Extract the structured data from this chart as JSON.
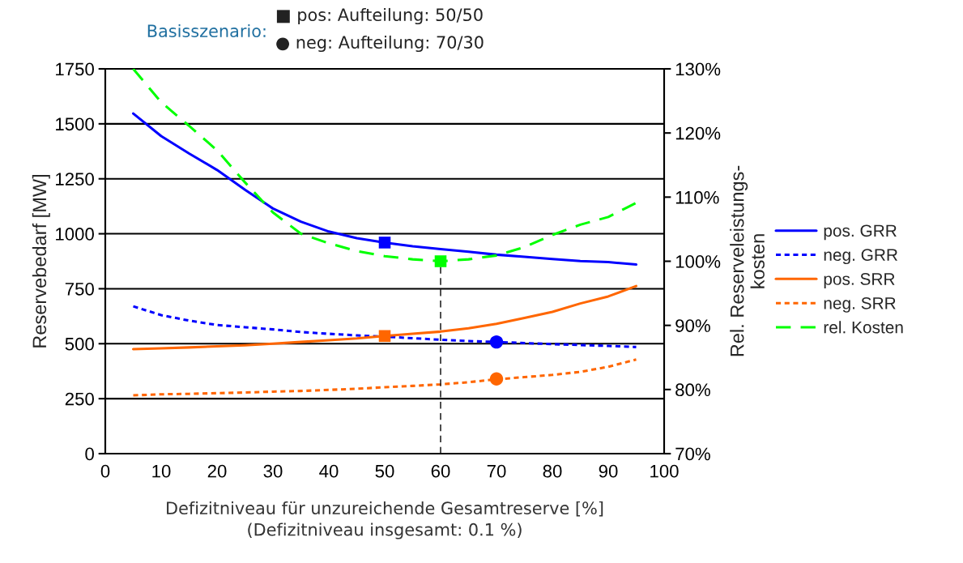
{
  "chart_data": {
    "type": "line",
    "x": [
      5,
      10,
      15,
      20,
      25,
      30,
      35,
      40,
      45,
      50,
      55,
      60,
      65,
      70,
      75,
      80,
      85,
      90,
      95
    ],
    "xlabel": "Defizitniveau für unzureichende Gesamtreserve [%]\n(Defizitniveau insgesamt: 0.1 %)",
    "ylabel": "Reservebedarf [MW]",
    "y2label": "Rel. Reserveleistungs-\nkosten",
    "annotations": [
      "Basisszenario:",
      "■ pos: Aufteilung: 50/50",
      "● neg: Aufteilung: 70/30"
    ],
    "series": [
      {
        "name": "pos. GRR",
        "color": "#0000ff",
        "line_style": "solid",
        "values": [
          1547,
          1444,
          1365,
          1290,
          1200,
          1115,
          1055,
          1010,
          980,
          960,
          943,
          930,
          918,
          905,
          895,
          885,
          876,
          871,
          860
        ]
      },
      {
        "name": "neg. GRR",
        "color": "#0000ff",
        "line_style": "dotted",
        "values": [
          670,
          630,
          605,
          585,
          575,
          565,
          553,
          545,
          538,
          532,
          525,
          518,
          512,
          508,
          503,
          498,
          494,
          490,
          485
        ]
      },
      {
        "name": "pos. SRR",
        "color": "#ff6600",
        "line_style": "solid",
        "values": [
          475,
          479,
          483,
          488,
          493,
          500,
          508,
          516,
          524,
          535,
          545,
          555,
          570,
          590,
          617,
          645,
          683,
          715,
          762
        ]
      },
      {
        "name": "neg. SRR",
        "color": "#ff6600",
        "line_style": "dotted",
        "values": [
          265,
          270,
          272,
          275,
          278,
          282,
          285,
          290,
          295,
          302,
          308,
          315,
          325,
          338,
          348,
          358,
          372,
          395,
          428
        ]
      },
      {
        "name": "rel. Kosten",
        "color": "#00ff00",
        "line_style": "dashed",
        "axis": "y2",
        "values": [
          130,
          124.8,
          121.1,
          117.3,
          112.3,
          107.6,
          104.3,
          102.8,
          101.6,
          100.8,
          100.3,
          100,
          100.3,
          100.9,
          102.2,
          104.1,
          105.7,
          106.9,
          109.1
        ]
      },
      {
        "type": "line",
        "color": "#000000",
        "line_style": "dashed",
        "axis": "y2",
        "x": [
          60,
          60
        ],
        "values": [
          70,
          100
        ]
      },
      {
        "type": "scatter",
        "marker": "square",
        "color": "#0000ff",
        "x": [
          50
        ],
        "values": [
          960
        ]
      },
      {
        "type": "scatter",
        "marker": "square",
        "color": "#ff6600",
        "x": [
          50
        ],
        "values": [
          535
        ]
      },
      {
        "type": "scatter",
        "marker": "square",
        "color": "#00ff00",
        "axis": "y2",
        "x": [
          60
        ],
        "values": [
          100
        ]
      },
      {
        "type": "scatter",
        "marker": "circle",
        "color": "#0000ff",
        "x": [
          70
        ],
        "values": [
          508
        ]
      },
      {
        "type": "scatter",
        "marker": "circle",
        "color": "#ff6600",
        "x": [
          70
        ],
        "values": [
          340
        ]
      }
    ],
    "xlim": [
      0,
      100
    ],
    "xticks": [
      0,
      10,
      20,
      30,
      40,
      50,
      60,
      70,
      80,
      90,
      100
    ],
    "ylim": [
      0,
      1750
    ],
    "yticks": [
      0,
      250,
      500,
      750,
      1000,
      1250,
      1500,
      1750
    ],
    "y2lim": [
      70,
      130
    ],
    "y2ticks": [
      {
        "value": 70,
        "label": "70%"
      },
      {
        "value": 80,
        "label": "80%"
      },
      {
        "value": 90,
        "label": "90%"
      },
      {
        "value": 100,
        "label": "100%"
      },
      {
        "value": 110,
        "label": "110%"
      },
      {
        "value": 120,
        "label": "120%"
      },
      {
        "value": 130,
        "label": "130%"
      }
    ],
    "grid": "y",
    "legend": "right"
  }
}
